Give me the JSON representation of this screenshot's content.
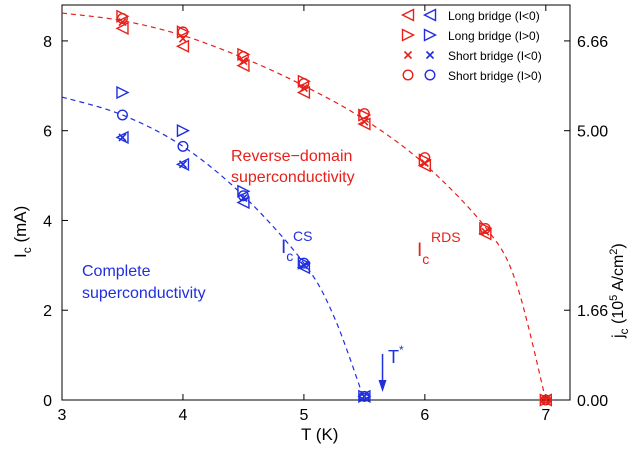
{
  "chart_data": {
    "type": "scatter",
    "xlabel": "T (K)",
    "ylabel_left": "I",
    "ylabel_left_sub": "c",
    "ylabel_left_unit": " (mA)",
    "ylabel_right_main": "j",
    "ylabel_right_sub": "c",
    "ylabel_right_unit_a": " (10",
    "ylabel_right_exp1": "5",
    "ylabel_right_unit_b": " A/cm",
    "ylabel_right_exp2": "2",
    "ylabel_right_unit_c": ")",
    "xlim": [
      3,
      7.2
    ],
    "ylim": [
      0,
      8.8
    ],
    "xticks": [
      3,
      4,
      5,
      6,
      7
    ],
    "xtick_labels": [
      "3",
      "4",
      "5",
      "6",
      "7"
    ],
    "yticks": [
      0,
      2,
      4,
      6,
      8
    ],
    "ytick_labels": [
      "0",
      "2",
      "4",
      "6",
      "8"
    ],
    "right_ticks": [
      0,
      1.66,
      5.0,
      6.66
    ],
    "right_tick_values_on_left_axis": [
      0,
      2,
      6,
      8
    ],
    "right_tick_labels": [
      "0.00",
      "1.66",
      "5.00",
      "6.66"
    ],
    "colors": {
      "red": "#e8201a",
      "blue": "#1f2fe0",
      "axis": "#000000"
    },
    "legend": {
      "position": "top-right",
      "entries": [
        {
          "label": "Long bridge (I<0)",
          "marker": "triangle-left"
        },
        {
          "label": "Long bridge (I>0)",
          "marker": "triangle-right"
        },
        {
          "label": "Short bridge (I<0)",
          "marker": "x"
        },
        {
          "label": "Short bridge (I>0)",
          "marker": "circle"
        }
      ]
    },
    "annotations": {
      "rds_region_line1": "Reverse−domain",
      "rds_region_line2": "superconductivity",
      "cs_region_line1": "Complete",
      "cs_region_line2": "superconductivity",
      "ic_rds_main": "I",
      "ic_rds_sub": "c",
      "ic_rds_sup": "RDS",
      "ic_cs_main": "I",
      "ic_cs_sub": "c",
      "ic_cs_sup": "CS",
      "tstar_main": "T",
      "tstar_sup": "*",
      "tstar_x": 5.65
    },
    "series": [
      {
        "group": "rds",
        "color": "red",
        "marker": "triangle-left",
        "x": [
          3.5,
          4.0,
          4.5,
          5.0,
          5.5,
          6.0,
          6.5,
          7.0
        ],
        "y": [
          8.28,
          7.88,
          7.45,
          6.85,
          6.15,
          5.22,
          3.7,
          0.0
        ]
      },
      {
        "group": "rds",
        "color": "red",
        "marker": "triangle-right",
        "x": [
          3.5,
          4.0,
          4.5,
          5.0,
          5.5,
          6.0,
          6.5,
          7.0
        ],
        "y": [
          8.55,
          8.2,
          7.7,
          7.1,
          6.35,
          5.35,
          3.82,
          0.0
        ]
      },
      {
        "group": "rds",
        "color": "red",
        "marker": "x",
        "x": [
          3.5,
          4.0,
          4.5,
          5.0,
          5.5,
          6.0,
          6.5,
          7.0
        ],
        "y": [
          8.42,
          8.05,
          7.55,
          6.95,
          6.2,
          5.28,
          3.75,
          0.0
        ]
      },
      {
        "group": "rds",
        "color": "red",
        "marker": "circle",
        "x": [
          3.5,
          4.0,
          4.5,
          5.0,
          5.5,
          6.0,
          6.5,
          7.0
        ],
        "y": [
          8.5,
          8.2,
          7.65,
          7.05,
          6.38,
          5.4,
          3.82,
          0.0
        ]
      },
      {
        "group": "cs",
        "color": "blue",
        "marker": "triangle-left",
        "x": [
          3.5,
          4.0,
          4.5,
          5.0,
          5.5
        ],
        "y": [
          5.85,
          5.25,
          4.4,
          2.95,
          0.08
        ]
      },
      {
        "group": "cs",
        "color": "blue",
        "marker": "triangle-right",
        "x": [
          3.5,
          4.0,
          4.5,
          5.0,
          5.5
        ],
        "y": [
          6.85,
          6.0,
          4.65,
          3.05,
          0.08
        ]
      },
      {
        "group": "cs",
        "color": "blue",
        "marker": "x",
        "x": [
          3.5,
          4.0,
          4.5,
          5.0,
          5.5
        ],
        "y": [
          5.85,
          5.25,
          4.5,
          3.0,
          0.08
        ]
      },
      {
        "group": "cs",
        "color": "blue",
        "marker": "circle",
        "x": [
          3.5,
          4.0,
          4.5,
          5.0,
          5.5
        ],
        "y": [
          6.35,
          5.65,
          4.55,
          3.05,
          0.08
        ]
      }
    ],
    "fits": [
      {
        "group": "rds",
        "color": "red",
        "style": "dashed",
        "x": [
          3.0,
          3.5,
          4.0,
          4.5,
          5.0,
          5.5,
          6.0,
          6.5,
          6.75,
          7.0
        ],
        "y": [
          8.62,
          8.45,
          8.12,
          7.62,
          7.0,
          6.25,
          5.25,
          3.85,
          2.65,
          0.0
        ]
      },
      {
        "group": "cs",
        "color": "blue",
        "style": "dashed",
        "x": [
          3.0,
          3.5,
          4.0,
          4.5,
          5.0,
          5.25,
          5.5
        ],
        "y": [
          6.75,
          6.35,
          5.65,
          4.55,
          3.05,
          1.85,
          0.0
        ]
      }
    ]
  }
}
